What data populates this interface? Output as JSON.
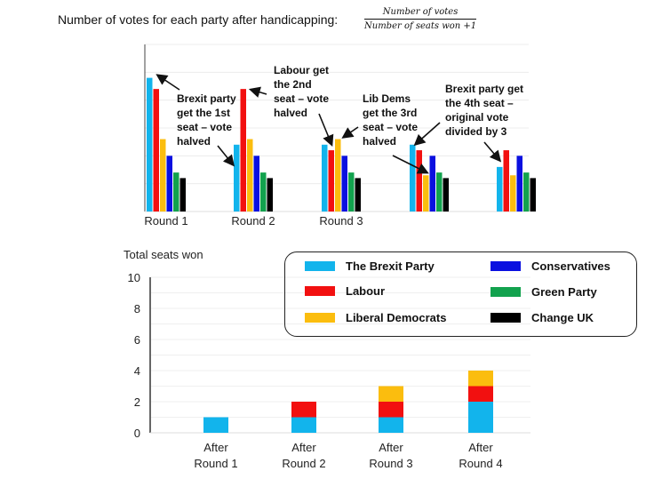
{
  "title": "Number of votes for each party after handicapping:",
  "formula": {
    "numerator": "Number of votes",
    "denominator": "Number of seats won +1"
  },
  "colors": {
    "The Brexit Party": "#12b4ec",
    "Labour": "#f21010",
    "Liberal Democrats": "#fbbd0e",
    "Conservatives": "#0a10e0",
    "Green Party": "#12a24e",
    "Change UK": "#000000"
  },
  "chart_data": [
    {
      "type": "bar",
      "title": "",
      "categories": [
        "Round 1",
        "Round 2",
        "Round 3",
        "",
        ""
      ],
      "series": [
        {
          "name": "The Brexit Party",
          "values": [
            4.8,
            2.4,
            2.4,
            2.4,
            1.6
          ]
        },
        {
          "name": "Labour",
          "values": [
            4.4,
            4.4,
            2.2,
            2.2,
            2.2
          ]
        },
        {
          "name": "Liberal Democrats",
          "values": [
            2.6,
            2.6,
            2.6,
            1.3,
            1.3
          ]
        },
        {
          "name": "Conservatives",
          "values": [
            2.0,
            2.0,
            2.0,
            2.0,
            2.0
          ]
        },
        {
          "name": "Green Party",
          "values": [
            1.4,
            1.4,
            1.4,
            1.4,
            1.4
          ]
        },
        {
          "name": "Change UK",
          "values": [
            1.2,
            1.2,
            1.2,
            1.2,
            1.2
          ]
        }
      ],
      "ylim": [
        0,
        6
      ],
      "grid": true,
      "annotations": [
        {
          "lines": [
            "Brexit party",
            "get the 1st",
            "seat – vote",
            "halved"
          ]
        },
        {
          "lines": [
            "Labour get",
            "the 2nd",
            "seat – vote",
            "halved"
          ]
        },
        {
          "lines": [
            "Lib Dems",
            "get the 3rd",
            "seat – vote",
            "halved"
          ]
        },
        {
          "lines": [
            "Brexit party get",
            "the 4th seat –",
            "original vote",
            "divided by 3"
          ]
        }
      ]
    },
    {
      "type": "bar",
      "stacked": true,
      "ylabel": "Total seats won",
      "categories": [
        "After\nRound 1",
        "After\nRound 2",
        "After\nRound 3",
        "After\nRound 4"
      ],
      "series": [
        {
          "name": "The Brexit Party",
          "values": [
            1,
            1,
            1,
            2
          ]
        },
        {
          "name": "Labour",
          "values": [
            0,
            1,
            1,
            1
          ]
        },
        {
          "name": "Liberal Democrats",
          "values": [
            0,
            0,
            1,
            1
          ]
        },
        {
          "name": "Conservatives",
          "values": [
            0,
            0,
            0,
            0
          ]
        },
        {
          "name": "Green Party",
          "values": [
            0,
            0,
            0,
            0
          ]
        },
        {
          "name": "Change UK",
          "values": [
            0,
            0,
            0,
            0
          ]
        }
      ],
      "ylim": [
        0,
        10
      ],
      "yticks": [
        "0",
        "2",
        "4",
        "6",
        "8",
        "10"
      ],
      "grid": true,
      "legend": "top-right"
    }
  ]
}
